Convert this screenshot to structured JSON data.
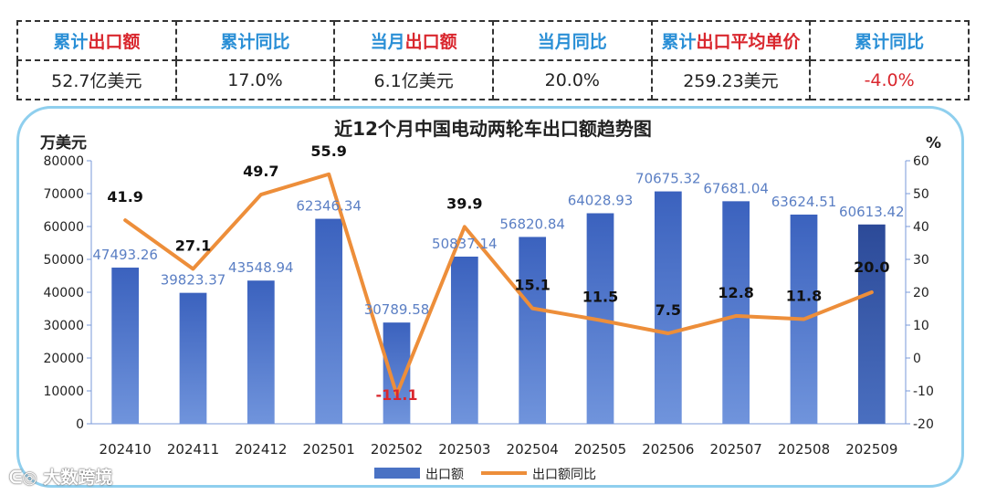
{
  "summary": {
    "headers": [
      {
        "parts": [
          {
            "t": "累计",
            "c": "blue"
          },
          {
            "t": "出口额",
            "c": "red"
          }
        ]
      },
      {
        "parts": [
          {
            "t": "累计同比",
            "c": "blue"
          }
        ]
      },
      {
        "parts": [
          {
            "t": "当月",
            "c": "blue"
          },
          {
            "t": "出口额",
            "c": "red"
          }
        ]
      },
      {
        "parts": [
          {
            "t": "当月同比",
            "c": "blue"
          }
        ]
      },
      {
        "parts": [
          {
            "t": "累计",
            "c": "blue"
          },
          {
            "t": "出口平均单价",
            "c": "red"
          }
        ]
      },
      {
        "parts": [
          {
            "t": "累计同比",
            "c": "blue"
          }
        ]
      }
    ],
    "values": [
      "52.7亿美元",
      "17.0%",
      "6.1亿美元",
      "20.0%",
      "259.23美元",
      "-4.0%"
    ]
  },
  "chart_data": {
    "type": "bar+line",
    "title": "近12个月中国电动两轮车出口额趋势图",
    "ylabel_left": "万美元",
    "ylabel_right": "%",
    "ylim_left": [
      0,
      80000
    ],
    "ylim_right": [
      -20,
      60
    ],
    "yticks_left": [
      "0",
      "10000",
      "20000",
      "30000",
      "40000",
      "50000",
      "60000",
      "70000",
      "80000"
    ],
    "yticks_right": [
      "-20",
      "-10",
      "0",
      "10",
      "20",
      "30",
      "40",
      "50",
      "60"
    ],
    "categories": [
      "202410",
      "202411",
      "202412",
      "202501",
      "202502",
      "202503",
      "202504",
      "202505",
      "202506",
      "202507",
      "202508",
      "202509"
    ],
    "series": [
      {
        "name": "出口额",
        "axis": "left",
        "type": "bar",
        "values": [
          47493.26,
          39823.37,
          43548.94,
          62346.34,
          30789.58,
          50837.14,
          56820.84,
          64028.93,
          70675.32,
          67681.04,
          63624.51,
          60613.42
        ],
        "labels": [
          "47493.26",
          "39823.37",
          "43548.94",
          "62346.34",
          "30789.58",
          "50837.14",
          "56820.84",
          "64028.93",
          "70675.32",
          "67681.04",
          "63624.51",
          "60613.42"
        ]
      },
      {
        "name": "出口额同比",
        "axis": "right",
        "type": "line",
        "values": [
          41.9,
          27.1,
          49.7,
          55.9,
          -11.1,
          39.9,
          15.1,
          11.5,
          7.5,
          12.8,
          11.8,
          20.0
        ],
        "labels": [
          "41.9",
          "27.1",
          "49.7",
          "55.9",
          "-11.1",
          "39.9",
          "15.1",
          "11.5",
          "7.5",
          "12.8",
          "11.8",
          "20.0"
        ]
      }
    ],
    "legend": [
      "出口额",
      "出口额同比"
    ],
    "colors": {
      "bar": "#4a72c4",
      "bar_last": "#2f4f9f",
      "line": "#ed8e3a",
      "bar_label": "#5b7fc4",
      "line_label": "#111111",
      "neg_label": "#d9272e"
    }
  },
  "watermark": "大数跨境"
}
